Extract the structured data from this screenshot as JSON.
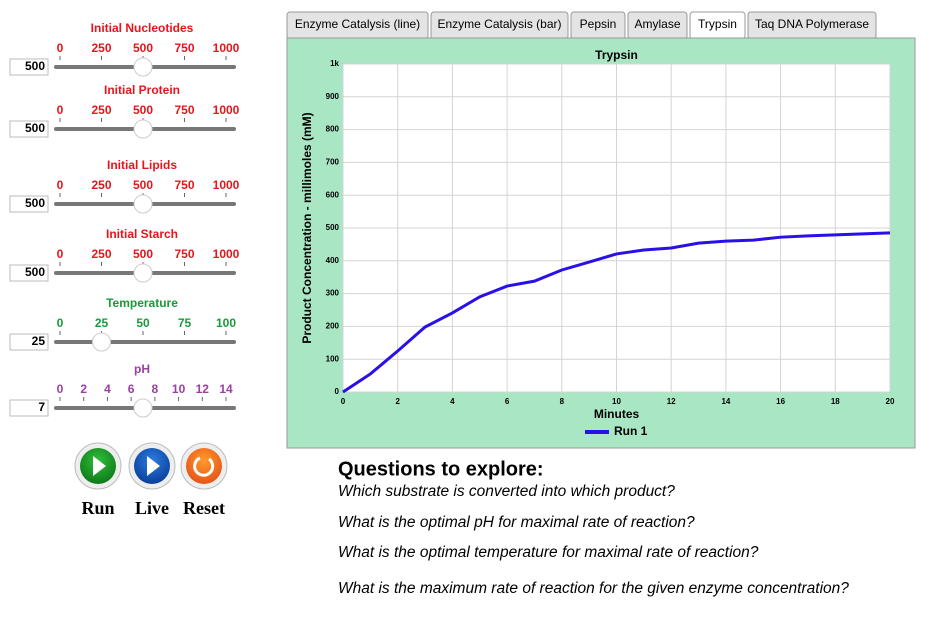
{
  "sliders": [
    {
      "label": "Initial Nucleotides",
      "ticks": [
        0,
        250,
        500,
        750,
        1000
      ],
      "value": 500
    },
    {
      "label": "Initial Protein",
      "ticks": [
        0,
        250,
        500,
        750,
        1000
      ],
      "value": 500
    },
    {
      "label": "Initial Lipids",
      "ticks": [
        0,
        250,
        500,
        750,
        1000
      ],
      "value": 500
    },
    {
      "label": "Initial Starch",
      "ticks": [
        0,
        250,
        500,
        750,
        1000
      ],
      "value": 500
    },
    {
      "label": "Temperature",
      "ticks": [
        0,
        25,
        50,
        75,
        100
      ],
      "value": 25
    },
    {
      "label": "pH",
      "ticks": [
        0,
        2,
        4,
        6,
        8,
        10,
        12,
        14
      ],
      "value": 7
    }
  ],
  "buttons": [
    "Run",
    "Live",
    "Reset"
  ],
  "tabs": {
    "items": [
      "Enzyme Catalysis (line)",
      "Enzyme Catalysis (bar)",
      "Pepsin",
      "Amylase",
      "Trypsin",
      "Taq DNA Polymerase"
    ],
    "active": 4
  },
  "chart_data": {
    "type": "line",
    "title": "Trypsin",
    "x_label": "Minutes",
    "y_label": "Product Concentration - millimoles (mM)",
    "x": [
      0,
      1,
      2,
      3,
      4,
      5,
      6,
      7,
      8,
      9,
      10,
      11,
      12,
      13,
      14,
      15,
      16,
      17,
      18,
      19,
      20
    ],
    "series": [
      {
        "name": "Run 1",
        "color": "#2a10e8",
        "values": [
          0,
          55,
          125,
          198,
          241,
          290,
          323,
          338,
          372,
          396,
          421,
          433,
          439,
          454,
          460,
          463,
          472,
          476,
          479,
          482,
          485
        ]
      }
    ],
    "xlim": [
      0,
      20
    ],
    "xticks": [
      0,
      2,
      4,
      6,
      8,
      10,
      12,
      14,
      16,
      18,
      20
    ],
    "ylim": [
      0,
      1000
    ],
    "yticks": [
      0,
      100,
      200,
      300,
      400,
      500,
      600,
      700,
      800,
      900,
      {
        "value": 1000,
        "label": "1k"
      }
    ],
    "grid": true,
    "legend": "bottom"
  },
  "questions": {
    "title": "Questions to explore:",
    "items": [
      "Which substrate is converted into which product?",
      "What is the optimal pH for maximal rate of reaction?",
      "What is the optimal temperature for maximal rate of reaction?",
      "What is the maximum rate of reaction for the given enzyme concentration?"
    ]
  }
}
